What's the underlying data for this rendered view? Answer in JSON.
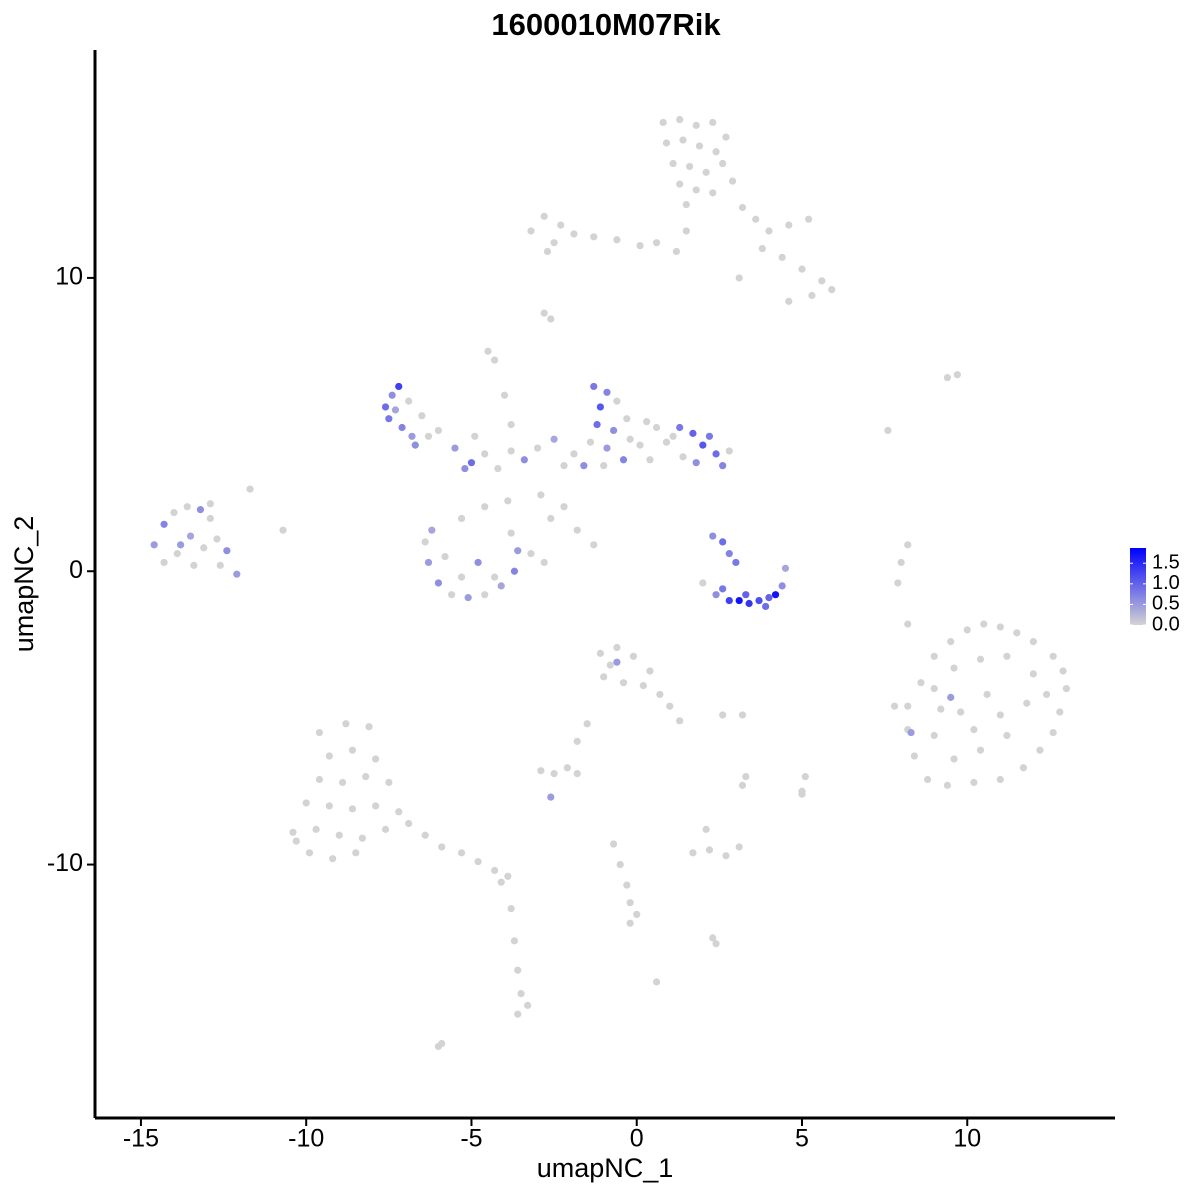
{
  "chart_data": {
    "type": "scatter",
    "title": "1600010M07Rik",
    "x_label": "umapNC_1",
    "y_label": "umapNC_2",
    "xlim": [
      -16.39,
      14.47
    ],
    "ylim": [
      -18.64,
      17.77
    ],
    "xticks": [
      -15,
      -10,
      -5,
      0,
      5,
      10
    ],
    "yticks": [
      -10,
      0,
      10
    ],
    "low_color": "#d3d3d3",
    "high_color": "#0000ff",
    "color_range": [
      0,
      1.87
    ],
    "color_ticks": [
      {
        "value": 0,
        "label": "0.0"
      },
      0.5,
      {
        "value": 1,
        "label": "1.0"
      },
      1.5
    ],
    "x": [
      0.8,
      1.3,
      1.8,
      2.3,
      2.7,
      0.9,
      1.4,
      1.9,
      2.4,
      1.1,
      1.6,
      2.1,
      2.6,
      1.3,
      1.8,
      2.3,
      2.9,
      1.5,
      3.2,
      3.6,
      4.0,
      4.6,
      5.2,
      3.8,
      4.4,
      5.0,
      5.6,
      5.9,
      5.3,
      4.6,
      3.1,
      1.5,
      1.2,
      -3.2,
      -2.8,
      -2.3,
      -2.5,
      -1.9,
      -1.3,
      -0.6,
      0.1,
      0.6,
      -2.7,
      -2.8,
      -2.6,
      -4.5,
      -4.3,
      -4.0,
      -3.8,
      -7.6,
      -7.4,
      -7.2,
      -7.5,
      -7.1,
      -6.8,
      -6.9,
      -6.5,
      -6.3,
      -7.3,
      -6.7,
      -6.0,
      -5.5,
      -5.0,
      -4.6,
      -4.2,
      -3.8,
      -3.4,
      -3.0,
      -2.5,
      -2.2,
      -1.9,
      -5.2,
      -4.9,
      -2.9,
      -2.2,
      -2.6,
      -1.8,
      -1.3,
      -3.9,
      -4.6,
      -5.3,
      -1.3,
      -0.9,
      -1.1,
      -0.6,
      -1.2,
      -0.7,
      -0.3,
      -1.4,
      -0.9,
      -0.4,
      0.1,
      0.4,
      0.9,
      1.3,
      1.7,
      2.0,
      2.4,
      2.6,
      1.8,
      1.4,
      1.1,
      2.2,
      0.6,
      -0.2,
      -1.6,
      -1.0,
      0.3,
      2.8,
      -6.4,
      -6.3,
      -6.0,
      -5.6,
      -5.1,
      -4.6,
      -4.1,
      -3.7,
      -3.6,
      -3.8,
      -5.3,
      -4.8,
      -5.8,
      -4.3,
      -6.2,
      -3.2,
      -2.8,
      -14.6,
      -14.3,
      -14.0,
      -13.6,
      -13.2,
      -12.9,
      -13.9,
      -13.5,
      -13.1,
      -12.7,
      -14.3,
      -13.4,
      -12.6,
      -13.8,
      -12.4,
      -12.1,
      -11.7,
      -12.9,
      -10.7,
      2.3,
      2.6,
      2.8,
      3.0,
      2.0,
      2.4,
      2.8,
      3.1,
      3.4,
      3.7,
      4.0,
      4.2,
      4.4,
      4.5,
      3.3,
      2.6,
      3.9,
      8.2,
      8.6,
      9.0,
      9.5,
      10.0,
      10.5,
      11.0,
      11.5,
      12.0,
      12.6,
      12.9,
      13.0,
      12.8,
      12.6,
      12.2,
      11.7,
      11.0,
      10.2,
      9.4,
      8.8,
      8.4,
      8.2,
      9.0,
      9.6,
      10.4,
      11.2,
      12.0,
      11.8,
      11.2,
      10.4,
      9.6,
      9.0,
      9.8,
      10.6,
      11.0,
      10.2,
      9.2,
      12.4,
      7.8,
      9.5,
      8.3,
      8.0,
      7.9,
      8.2,
      8.2,
      9.7,
      9.4,
      7.6,
      -1.1,
      -0.6,
      -0.1,
      0.4,
      -1.0,
      -0.4,
      0.2,
      0.7,
      1.0,
      1.3,
      -0.8,
      -0.6,
      -1.5,
      -1.8,
      2.6,
      3.2,
      3.2,
      5.1,
      5.0,
      -9.6,
      -8.8,
      -8.1,
      -9.3,
      -8.6,
      -7.9,
      -9.6,
      -8.9,
      -8.2,
      -7.5,
      -10.0,
      -9.3,
      -8.6,
      -7.9,
      -7.2,
      -10.4,
      -9.7,
      -9.0,
      -8.3,
      -7.6,
      -9.9,
      -9.2,
      -8.5,
      -10.3,
      -6.9,
      -6.4,
      -5.9,
      -5.3,
      -4.8,
      -4.3,
      -3.9,
      -4.1,
      -3.8,
      -3.7,
      -3.6,
      -3.5,
      -3.6,
      -3.3,
      -2.9,
      -2.5,
      -2.1,
      -1.8,
      -2.6,
      1.7,
      2.2,
      2.7,
      3.1,
      2.1,
      -0.7,
      -0.5,
      -0.3,
      -0.2,
      0.0,
      -0.2,
      2.3,
      2.4,
      0.6,
      -5.9,
      -6.0,
      3.3,
      5.0
    ],
    "y": [
      15.3,
      15.4,
      15.2,
      15.3,
      14.8,
      14.6,
      14.7,
      14.5,
      14.3,
      13.9,
      13.8,
      13.6,
      13.9,
      13.2,
      13.0,
      12.9,
      13.3,
      12.5,
      12.4,
      12.0,
      11.6,
      11.8,
      12.0,
      11.0,
      10.7,
      10.3,
      9.9,
      9.6,
      9.4,
      9.2,
      10.0,
      11.6,
      10.9,
      11.6,
      12.1,
      11.8,
      11.2,
      11.5,
      11.4,
      11.3,
      11.1,
      11.2,
      10.9,
      8.8,
      8.6,
      7.5,
      7.2,
      6.0,
      5.0,
      5.6,
      6.0,
      6.3,
      5.2,
      4.9,
      4.6,
      5.8,
      5.3,
      4.6,
      5.5,
      4.3,
      4.8,
      4.2,
      3.7,
      4.0,
      3.5,
      4.1,
      3.8,
      4.2,
      4.5,
      3.6,
      4.0,
      3.5,
      4.6,
      2.6,
      2.2,
      1.8,
      1.4,
      0.9,
      2.4,
      2.2,
      1.8,
      6.3,
      6.1,
      5.6,
      5.8,
      5.0,
      4.8,
      5.2,
      4.4,
      4.2,
      3.8,
      4.3,
      3.8,
      4.4,
      4.9,
      4.7,
      4.3,
      4.0,
      3.6,
      3.7,
      3.9,
      4.6,
      4.6,
      4.9,
      4.5,
      3.6,
      3.6,
      5.1,
      4.1,
      1.0,
      0.3,
      -0.4,
      -0.8,
      -0.9,
      -0.8,
      -0.5,
      0,
      0.7,
      1.3,
      -0.2,
      0.3,
      0.5,
      -0.2,
      1.4,
      0.6,
      0.3,
      0.9,
      1.6,
      2.0,
      2.2,
      2.1,
      1.8,
      0.6,
      1.2,
      0.8,
      1.1,
      0.3,
      0.2,
      0.2,
      0.9,
      0.7,
      -0.1,
      2.8,
      2.3,
      1.4,
      1.2,
      1.0,
      0.6,
      0.3,
      -0.4,
      -0.8,
      -1.0,
      -1.0,
      -1.1,
      -1.0,
      -0.9,
      -0.8,
      -0.5,
      0.1,
      -0.8,
      -0.6,
      -1.2,
      -4.6,
      -3.8,
      -2.9,
      -2.4,
      -2.0,
      -1.8,
      -1.9,
      -2.1,
      -2.4,
      -2.9,
      -3.4,
      -4.0,
      -4.8,
      -5.5,
      -6.1,
      -6.7,
      -7.1,
      -7.2,
      -7.3,
      -7.1,
      -6.3,
      -5.4,
      -4.0,
      -3.3,
      -3.0,
      -2.9,
      -3.5,
      -4.5,
      -5.6,
      -6.1,
      -6.4,
      -5.6,
      -4.8,
      -4.2,
      -4.9,
      -5.4,
      -4.7,
      -4.2,
      -4.6,
      -4.3,
      -5.5,
      0.3,
      -0.4,
      -1.8,
      0.9,
      6.7,
      6.6,
      4.8,
      -2.8,
      -2.6,
      -2.9,
      -3.4,
      -3.6,
      -3.8,
      -3.9,
      -4.2,
      -4.6,
      -5.1,
      -3.2,
      -3.1,
      -5.2,
      -5.8,
      -4.9,
      -4.9,
      -7.3,
      -7.0,
      -7.5,
      -5.5,
      -5.2,
      -5.3,
      -6.3,
      -6.1,
      -6.4,
      -7.1,
      -7.2,
      -7.0,
      -7.2,
      -7.9,
      -8.0,
      -8.1,
      -8.0,
      -8.2,
      -8.9,
      -8.8,
      -9.0,
      -9.1,
      -8.8,
      -9.6,
      -9.8,
      -9.6,
      -9.2,
      -8.6,
      -9.0,
      -9.4,
      -9.6,
      -9.9,
      -10.2,
      -10.4,
      -10.6,
      -11.5,
      -12.6,
      -13.6,
      -14.4,
      -15.1,
      -14.8,
      -6.8,
      -6.9,
      -6.7,
      -6.9,
      -7.7,
      -9.6,
      -9.5,
      -9.7,
      -9.4,
      -8.8,
      -9.3,
      -10.0,
      -10.7,
      -11.3,
      -11.7,
      -12.0,
      -12.5,
      -12.7,
      -14.0,
      -16.1,
      -16.2,
      -7.0,
      -7.6
    ],
    "values": [
      0,
      0,
      0,
      0,
      0,
      0,
      0,
      0,
      0,
      0,
      0,
      0,
      0,
      0,
      0,
      0,
      0,
      0,
      0,
      0,
      0,
      0,
      0,
      0,
      0,
      0,
      0,
      0,
      0,
      0,
      0,
      0,
      0,
      0,
      0,
      0,
      0,
      0,
      0,
      0,
      0,
      0,
      0,
      0,
      0,
      0,
      0,
      0,
      0,
      0.9,
      0.6,
      1.3,
      0.8,
      0.7,
      0.5,
      0,
      0,
      0,
      0.4,
      0.6,
      0,
      0.5,
      0.9,
      0,
      0,
      0,
      0.6,
      0,
      0.4,
      0,
      0,
      0.6,
      0,
      0,
      0,
      0,
      0,
      0,
      0,
      0,
      0,
      0.8,
      0.7,
      1.1,
      0,
      0.9,
      0.6,
      0,
      0,
      0.5,
      0.7,
      0,
      0,
      0,
      0.8,
      1.0,
      1.1,
      0.9,
      0.7,
      0.6,
      0,
      0,
      0.8,
      0,
      0,
      0.6,
      0,
      0,
      0,
      0,
      0.5,
      0.6,
      0,
      0.5,
      0,
      0.4,
      0.7,
      0.5,
      0,
      0,
      0.6,
      0,
      0,
      0.4,
      0,
      0,
      0.5,
      0.7,
      0,
      0,
      0.6,
      0,
      0,
      0.4,
      0,
      0,
      0,
      0,
      0,
      0.5,
      0.6,
      0.5,
      0,
      0,
      0,
      0.6,
      0.9,
      0.7,
      0.8,
      0,
      0.6,
      1.3,
      1.7,
      1.4,
      1.2,
      1.0,
      1.7,
      0.6,
      0.4,
      1.0,
      0.8,
      0.9,
      0,
      0,
      0,
      0,
      0,
      0,
      0,
      0,
      0,
      0,
      0,
      0,
      0,
      0,
      0,
      0,
      0,
      0,
      0,
      0,
      0,
      0,
      0,
      0,
      0,
      0,
      0,
      0,
      0,
      0,
      0,
      0,
      0,
      0,
      0,
      0,
      0,
      0,
      0,
      0.5,
      0.5,
      0,
      0,
      0,
      0,
      0,
      0,
      0,
      0,
      0,
      0,
      0,
      0,
      0,
      0,
      0,
      0,
      0,
      0,
      0.5,
      0,
      0,
      0,
      0,
      0,
      0,
      0,
      0,
      0,
      0,
      0,
      0,
      0,
      0,
      0,
      0,
      0,
      0,
      0,
      0,
      0,
      0,
      0,
      0,
      0,
      0,
      0,
      0,
      0,
      0,
      0,
      0,
      0,
      0,
      0,
      0,
      0,
      0,
      0,
      0,
      0,
      0,
      0,
      0,
      0,
      0,
      0,
      0,
      0,
      0.5,
      0,
      0,
      0,
      0,
      0,
      0,
      0,
      0,
      0,
      0,
      0,
      0,
      0,
      0,
      0,
      0,
      0,
      0
    ]
  }
}
